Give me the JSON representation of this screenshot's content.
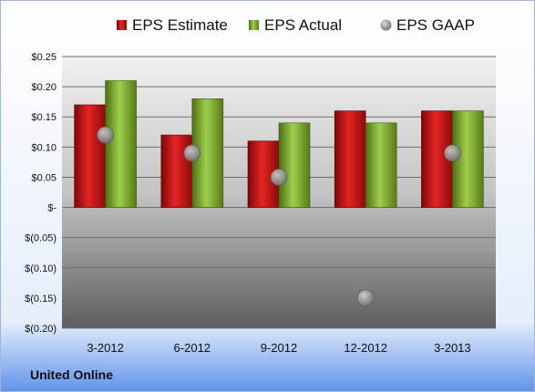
{
  "chart_data": {
    "type": "bar",
    "title": "",
    "xlabel": "",
    "ylabel": "",
    "ylim": [
      -0.2,
      0.25
    ],
    "yticks": [
      0.25,
      0.2,
      0.15,
      0.1,
      0.05,
      0,
      -0.05,
      -0.1,
      -0.15,
      -0.2
    ],
    "ytick_labels": [
      "$0.25",
      "$0.20",
      "$0.15",
      "$0.10",
      "$0.05",
      "$-",
      "$(0.05)",
      "$(0.10)",
      "$(0.15)",
      "$(0.20)"
    ],
    "categories": [
      "3-2012",
      "6-2012",
      "9-2012",
      "12-2012",
      "3-2013"
    ],
    "series": [
      {
        "name": "EPS Estimate",
        "kind": "bar",
        "color": "#d01a1a",
        "values": [
          0.17,
          0.12,
          0.11,
          0.16,
          0.16
        ]
      },
      {
        "name": "EPS Actual",
        "kind": "bar",
        "color": "#8fbc3a",
        "values": [
          0.21,
          0.18,
          0.14,
          0.14,
          0.16
        ]
      },
      {
        "name": "EPS GAAP",
        "kind": "marker",
        "color": "#9aa0a6",
        "values": [
          0.12,
          0.09,
          0.05,
          -0.15,
          0.09
        ]
      }
    ],
    "legend_position": "top",
    "grid": true,
    "footer_label": "United Online"
  }
}
